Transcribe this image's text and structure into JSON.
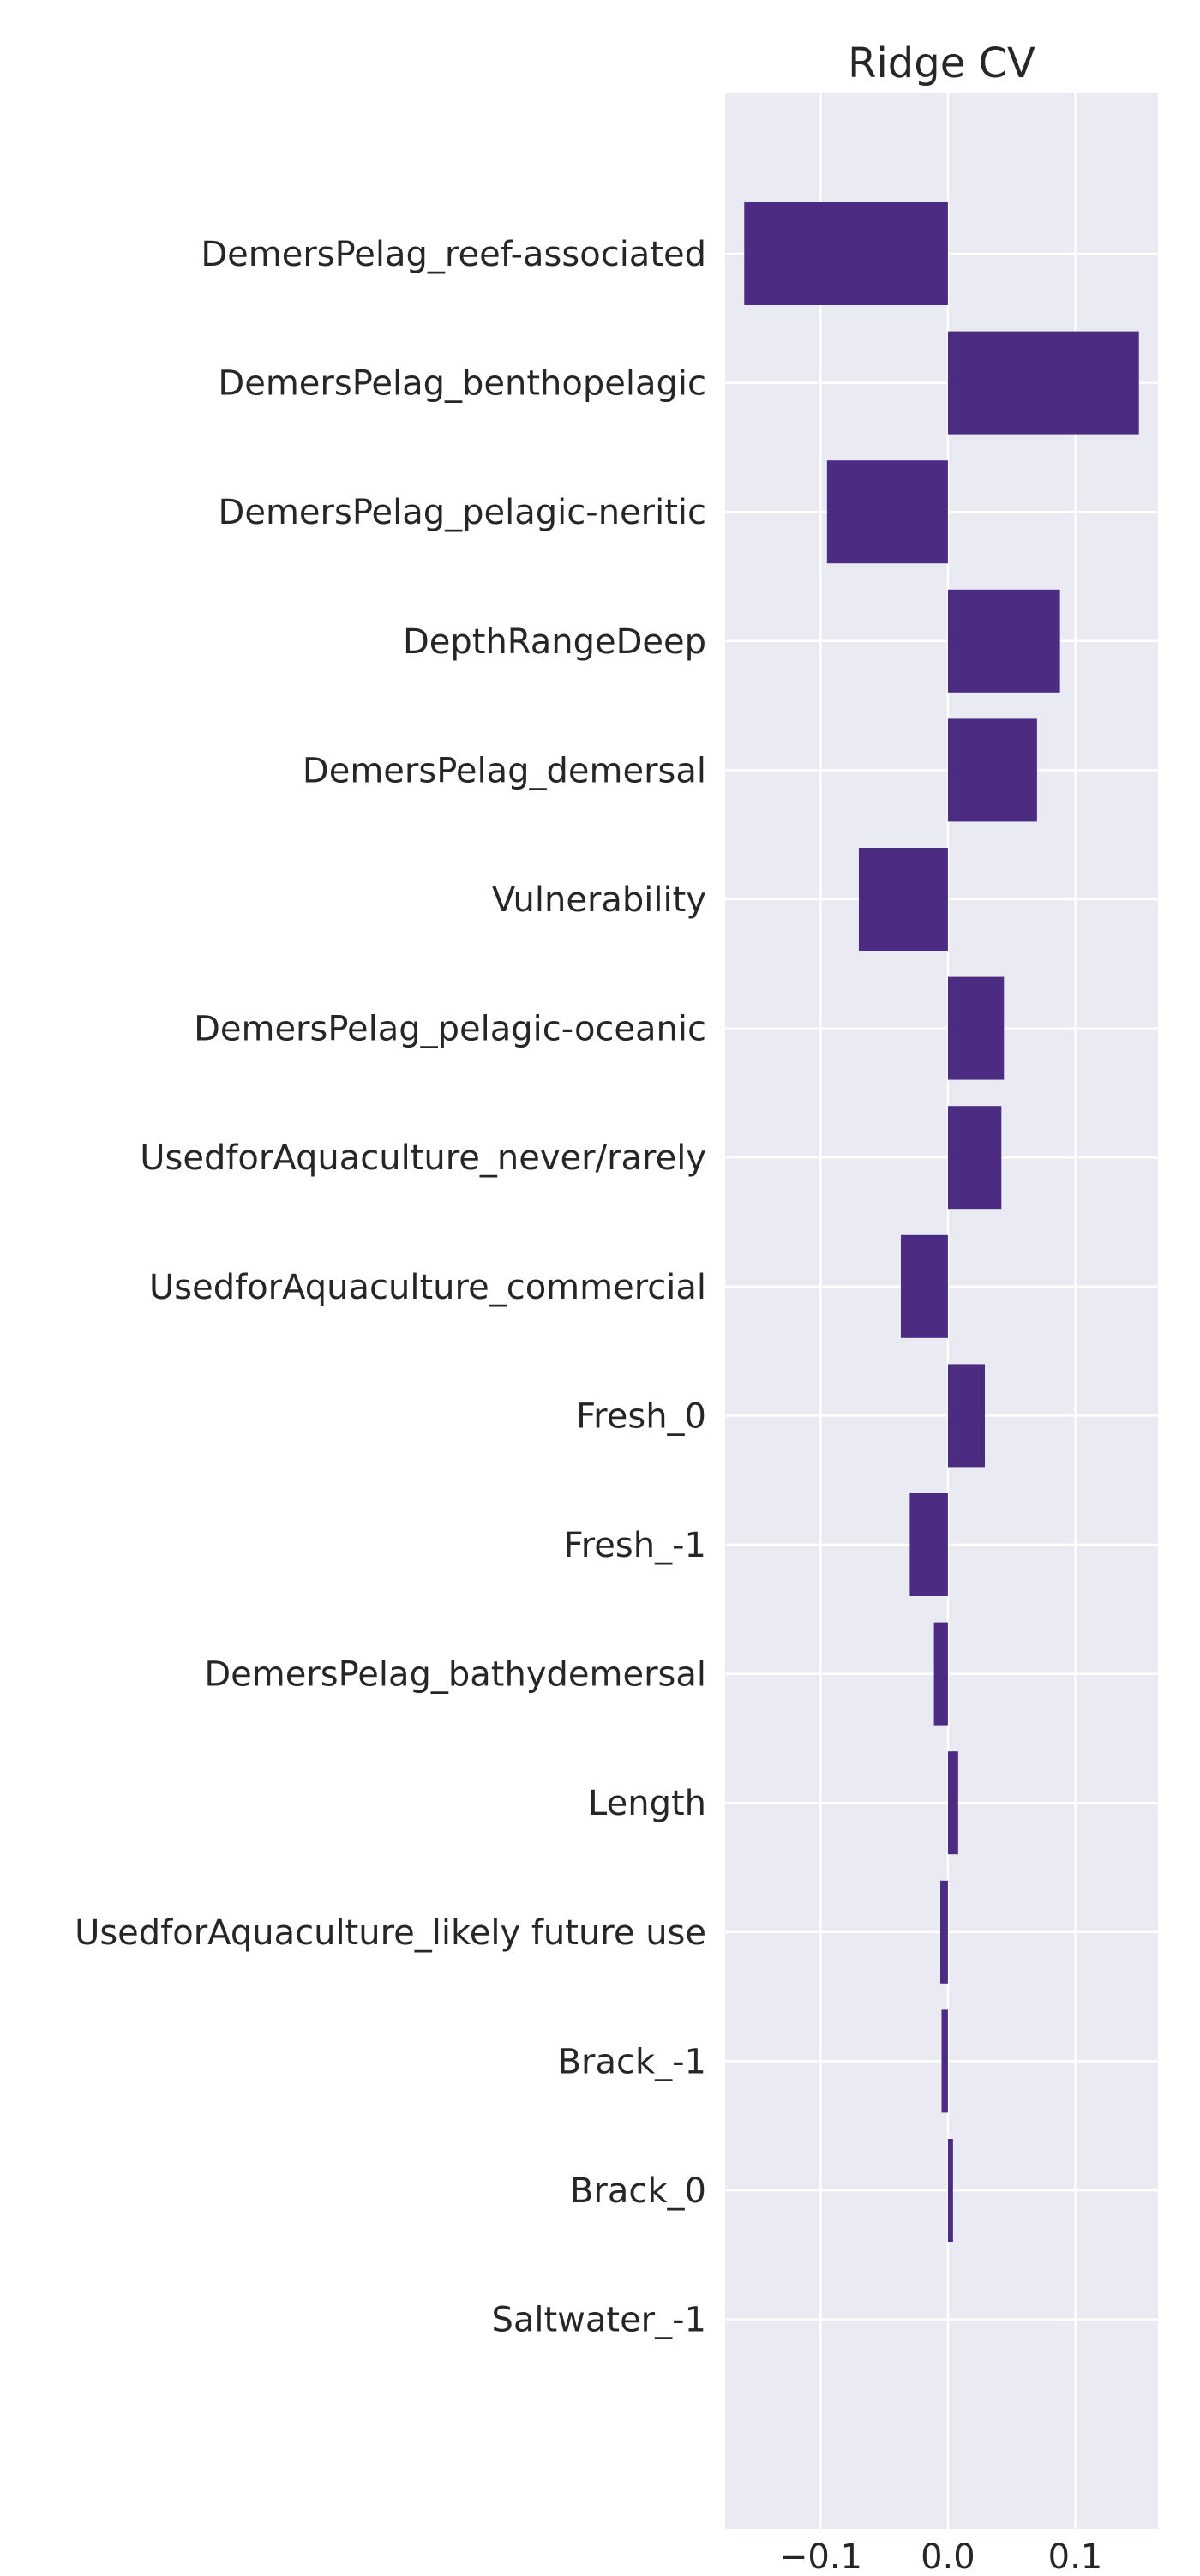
{
  "chart_data": {
    "type": "bar",
    "orientation": "horizontal",
    "title": "Ridge CV",
    "xlabel": "",
    "ylabel": "",
    "bar_color": "#4b2c82",
    "background_color": "#eaeaf2",
    "grid": true,
    "xlim": [
      -0.175,
      0.165
    ],
    "xticks": [
      -0.1,
      0.0,
      0.1
    ],
    "xtick_labels": [
      "−0.1",
      "0.0",
      "0.1"
    ],
    "categories": [
      "DemersPelag_reef-associated",
      "DemersPelag_benthopelagic",
      "DemersPelag_pelagic-neritic",
      "DepthRangeDeep",
      "DemersPelag_demersal",
      "Vulnerability",
      "DemersPelag_pelagic-oceanic",
      "UsedforAquaculture_never/rarely",
      "UsedforAquaculture_commercial",
      "Fresh_0",
      "Fresh_-1",
      "DemersPelag_bathydemersal",
      "Length",
      "UsedforAquaculture_likely future use",
      "Brack_-1",
      "Brack_0",
      "Saltwater_-1"
    ],
    "values": [
      -0.16,
      0.15,
      -0.095,
      0.088,
      0.07,
      -0.07,
      0.044,
      0.042,
      -0.037,
      0.029,
      -0.03,
      -0.011,
      0.008,
      -0.006,
      -0.005,
      0.004,
      0.0
    ]
  }
}
